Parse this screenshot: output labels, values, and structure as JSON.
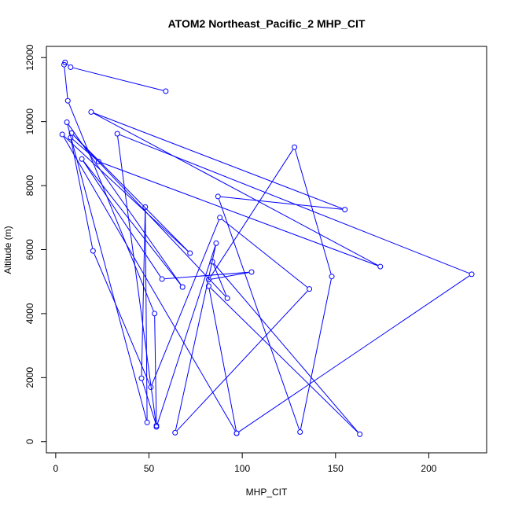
{
  "chart_data": {
    "type": "line",
    "title": "ATOM2 Northeast_Pacific_2 MHP_CIT",
    "xlabel": "MHP_CIT",
    "ylabel": "Altitude (m)",
    "xlim": [
      -5,
      231
    ],
    "ylim": [
      -350,
      12350
    ],
    "x_ticks": [
      0,
      50,
      100,
      150,
      200
    ],
    "y_ticks": [
      0,
      2000,
      4000,
      6000,
      8000,
      10000,
      12000
    ],
    "grid": false,
    "markers": "open-circle",
    "series": [
      {
        "color": "#0000ff",
        "points": [
          [
            59,
            10950
          ],
          [
            8,
            11700
          ],
          [
            5,
            11850
          ],
          [
            4.5,
            11780
          ],
          [
            6.5,
            10650
          ],
          [
            53,
            4000
          ],
          [
            54,
            500
          ],
          [
            46,
            1980
          ],
          [
            48,
            7330
          ],
          [
            49,
            600
          ],
          [
            6,
            9980
          ],
          [
            68,
            4830
          ],
          [
            14,
            8830
          ],
          [
            57,
            5080
          ],
          [
            105,
            5300
          ],
          [
            82,
            5060
          ],
          [
            128,
            9200
          ],
          [
            148,
            5160
          ],
          [
            131,
            300
          ],
          [
            87,
            7660
          ],
          [
            155,
            7250
          ],
          [
            19,
            10300
          ],
          [
            174,
            5470
          ],
          [
            23,
            8750
          ],
          [
            8,
            9500
          ],
          [
            20,
            5960
          ],
          [
            51,
            1700
          ],
          [
            88,
            7000
          ],
          [
            136,
            4770
          ],
          [
            64,
            280
          ],
          [
            86,
            6200
          ],
          [
            54,
            460
          ],
          [
            33,
            9620
          ],
          [
            223,
            5230
          ],
          [
            97,
            260
          ],
          [
            3.5,
            9600
          ],
          [
            72,
            5890
          ],
          [
            8.5,
            9640
          ],
          [
            92,
            4480
          ],
          [
            84,
            5620
          ],
          [
            163,
            230
          ],
          [
            82,
            4860
          ],
          [
            97,
            260
          ]
        ]
      }
    ]
  }
}
